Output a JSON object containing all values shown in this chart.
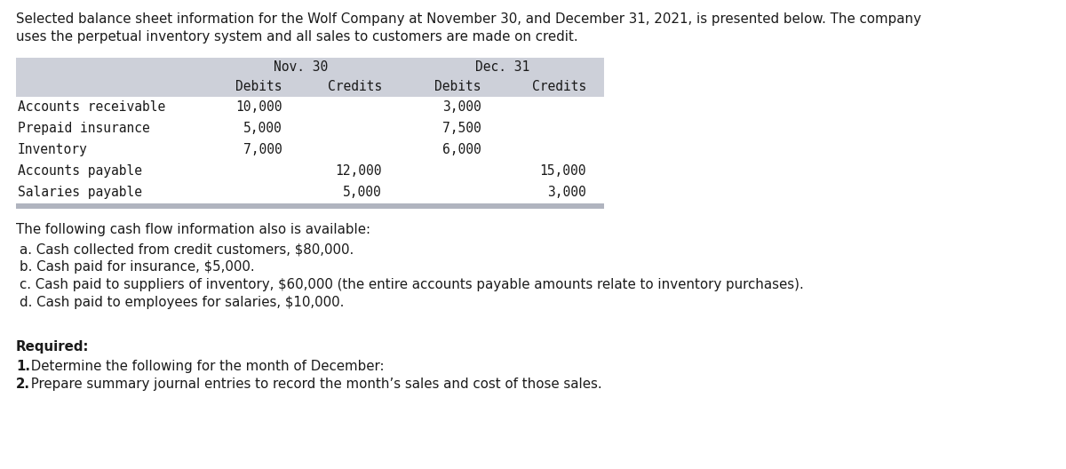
{
  "intro_line1": "Selected balance sheet information for the Wolf Company at November 30, and December 31, 2021, is presented below. The company",
  "intro_line2": "uses the perpetual inventory system and all sales to customers are made on credit.",
  "nov30_label": "Nov. 30",
  "dec31_label": "Dec. 31",
  "col_debits": "Debits",
  "col_credits": "Credits",
  "table_rows": [
    [
      "Accounts receivable",
      "10,000",
      "",
      "3,000",
      ""
    ],
    [
      "Prepaid insurance",
      "5,000",
      "",
      "7,500",
      ""
    ],
    [
      "Inventory",
      "7,000",
      "",
      "6,000",
      ""
    ],
    [
      "Accounts payable",
      "",
      "12,000",
      "",
      "15,000"
    ],
    [
      "Salaries payable",
      "",
      "5,000",
      "",
      "3,000"
    ]
  ],
  "header_bg": "#cdd0d9",
  "table_bg": "#ffffff",
  "bottom_bar_color": "#b0b4bf",
  "cash_flow_header": "The following cash flow information also is available:",
  "cash_flow_items": [
    "a. Cash collected from credit customers, $80,000.",
    "b. Cash paid for insurance, $5,000.",
    "c. Cash paid to suppliers of inventory, $60,000 (the entire accounts payable amounts relate to inventory purchases).",
    "d. Cash paid to employees for salaries, $10,000."
  ],
  "required_label": "Required:",
  "required_item1_num": "1.",
  "required_item1_text": " Determine the following for the month of December:",
  "required_item2_num": "2.",
  "required_item2_text": " Prepare summary journal entries to record the month’s sales and cost of those sales.",
  "bg_color": "#ffffff",
  "text_color": "#1a1a1a",
  "mono_font": "DejaVu Sans Mono",
  "sans_font": "DejaVu Sans",
  "fs_intro": 10.8,
  "fs_table": 10.5,
  "fs_body": 10.8
}
